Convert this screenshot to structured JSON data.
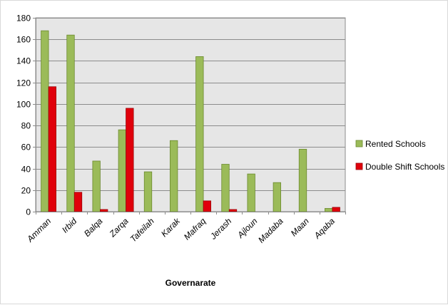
{
  "chart_data": {
    "type": "bar",
    "title": "",
    "xlabel": "Governarate",
    "ylabel": "",
    "ylim": [
      0,
      180
    ],
    "yticks": [
      0,
      20,
      40,
      60,
      80,
      100,
      120,
      140,
      160,
      180
    ],
    "grid": true,
    "legend_position": "right",
    "categories": [
      "Amman",
      "Irbid",
      "Balqa",
      "Zarqa",
      "Tafeilah",
      "Karak",
      "Mafraq",
      "Jerash",
      "Ajloun",
      "Madaba",
      "Maan",
      "Aqaba"
    ],
    "series": [
      {
        "name": "Rented Schools",
        "color": "#9bbb59",
        "values": [
          168,
          164,
          47,
          76,
          37,
          66,
          144,
          44,
          35,
          27,
          58,
          3
        ]
      },
      {
        "name": "Double Shift Schools",
        "color": "#e0000b",
        "values": [
          116,
          18,
          2,
          96,
          0,
          0,
          10,
          2,
          0,
          0,
          0,
          4
        ]
      }
    ]
  }
}
